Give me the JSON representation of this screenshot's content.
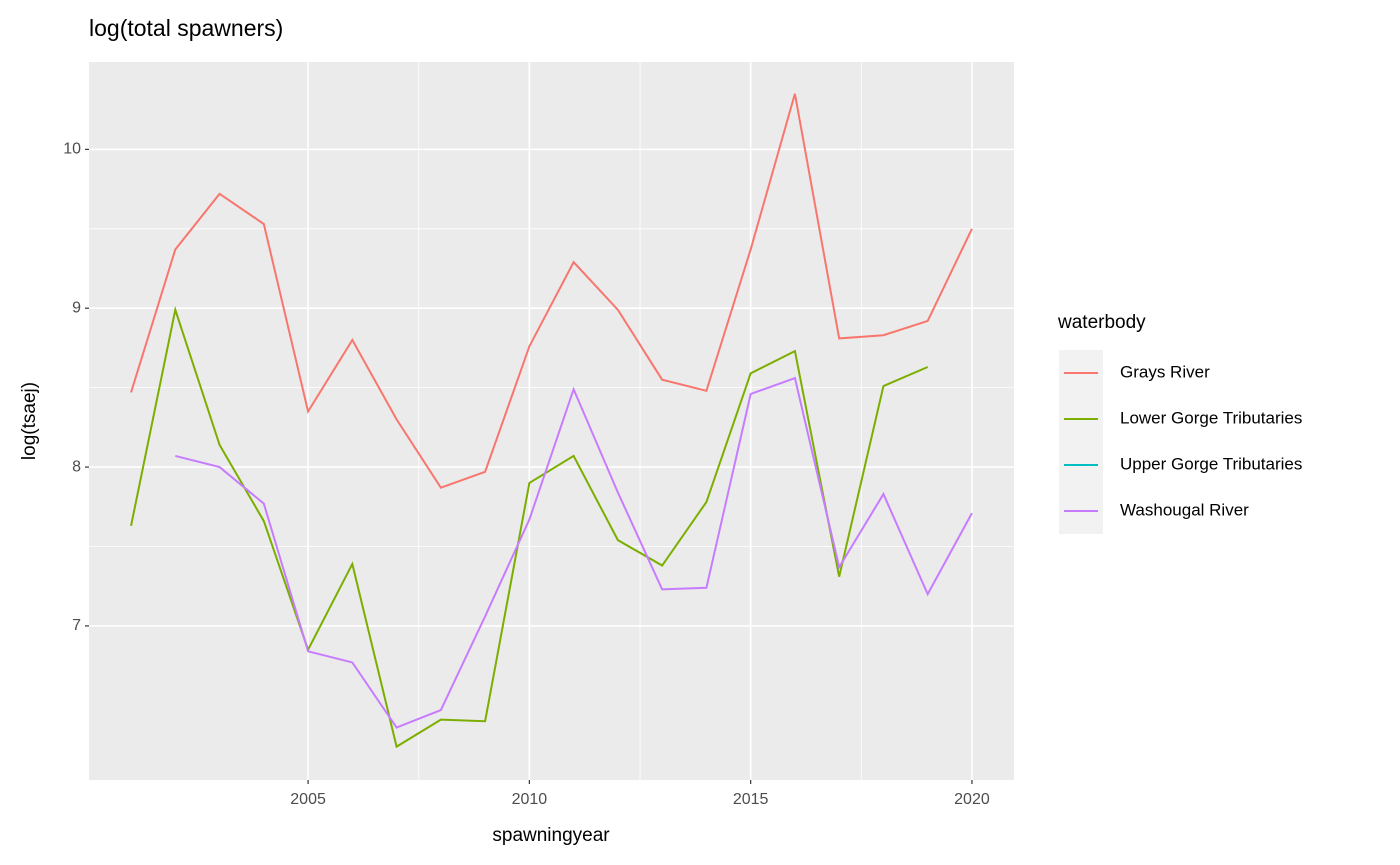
{
  "chart_data": {
    "type": "line",
    "title": "log(total spawners)",
    "x_label": "spawningyear",
    "y_label": "log(tsaej)",
    "legend_title": "waterbody",
    "x": [
      2001,
      2002,
      2003,
      2004,
      2005,
      2006,
      2007,
      2008,
      2009,
      2010,
      2011,
      2012,
      2013,
      2014,
      2015,
      2016,
      2017,
      2018,
      2019,
      2020
    ],
    "series": [
      {
        "name": "Grays River",
        "color": "#F8766D",
        "values": [
          8.47,
          9.37,
          9.72,
          9.53,
          8.35,
          8.8,
          8.3,
          7.87,
          7.97,
          8.76,
          9.29,
          8.99,
          8.55,
          8.48,
          9.37,
          10.35,
          8.81,
          8.83,
          8.92,
          9.5
        ]
      },
      {
        "name": "Lower Gorge Tributaries",
        "color": "#7CAE00",
        "values": [
          7.63,
          8.99,
          8.14,
          7.66,
          6.85,
          7.39,
          6.24,
          6.41,
          6.4,
          7.9,
          8.07,
          7.54,
          7.38,
          7.78,
          8.59,
          8.73,
          7.31,
          8.51,
          8.63,
          null
        ]
      },
      {
        "name": "Upper Gorge Tributaries",
        "color": "#00BFC4",
        "values": [
          null,
          null,
          null,
          null,
          null,
          null,
          null,
          null,
          null,
          null,
          null,
          null,
          null,
          null,
          null,
          null,
          null,
          null,
          null,
          null
        ]
      },
      {
        "name": "Washougal River",
        "color": "#C77CFF",
        "values": [
          null,
          8.07,
          8.0,
          7.77,
          6.84,
          6.77,
          6.36,
          6.47,
          7.06,
          7.67,
          8.49,
          7.84,
          7.23,
          7.24,
          8.46,
          8.56,
          7.37,
          7.83,
          7.2,
          7.71
        ]
      }
    ],
    "xlim": [
      2000.05,
      2020.95
    ],
    "xticks": [
      2005,
      2010,
      2015,
      2020
    ],
    "ylim": [
      6.03,
      10.55
    ],
    "yticks": [
      7,
      8,
      9,
      10
    ],
    "grid": true,
    "legend": "right"
  }
}
